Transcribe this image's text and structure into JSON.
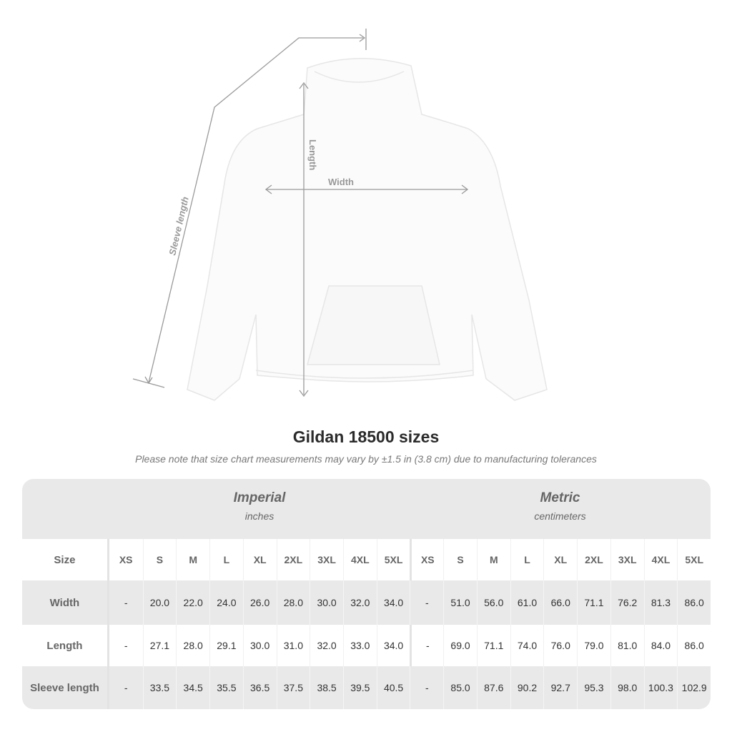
{
  "diagram": {
    "labels": {
      "sleeve": "Sleeve length",
      "length": "Length",
      "width": "Width"
    },
    "colors": {
      "garment": "#fbfbfb",
      "measure_line": "#9a9a9a"
    }
  },
  "title": "Gildan 18500 sizes",
  "note": "Please note that size chart measurements may vary by ±1.5 in (3.8 cm) due to manufacturing tolerances",
  "table": {
    "imperial": {
      "title": "Imperial",
      "unit": "inches"
    },
    "metric": {
      "title": "Metric",
      "unit": "centimeters"
    },
    "size_label": "Size",
    "sizes": [
      "XS",
      "S",
      "M",
      "L",
      "XL",
      "2XL",
      "3XL",
      "4XL",
      "5XL"
    ],
    "rows": [
      {
        "label": "Width",
        "imperial": [
          "-",
          "20.0",
          "22.0",
          "24.0",
          "26.0",
          "28.0",
          "30.0",
          "32.0",
          "34.0"
        ],
        "metric": [
          "-",
          "51.0",
          "56.0",
          "61.0",
          "66.0",
          "71.1",
          "76.2",
          "81.3",
          "86.0"
        ]
      },
      {
        "label": "Length",
        "imperial": [
          "-",
          "27.1",
          "28.0",
          "29.1",
          "30.0",
          "31.0",
          "32.0",
          "33.0",
          "34.0"
        ],
        "metric": [
          "-",
          "69.0",
          "71.1",
          "74.0",
          "76.0",
          "79.0",
          "81.0",
          "84.0",
          "86.0"
        ]
      },
      {
        "label": "Sleeve length",
        "imperial": [
          "-",
          "33.5",
          "34.5",
          "35.5",
          "36.5",
          "37.5",
          "38.5",
          "39.5",
          "40.5"
        ],
        "metric": [
          "-",
          "85.0",
          "87.6",
          "90.2",
          "92.7",
          "95.3",
          "98.0",
          "100.3",
          "102.9"
        ]
      }
    ],
    "colors": {
      "band": "#e9e9e9"
    }
  }
}
